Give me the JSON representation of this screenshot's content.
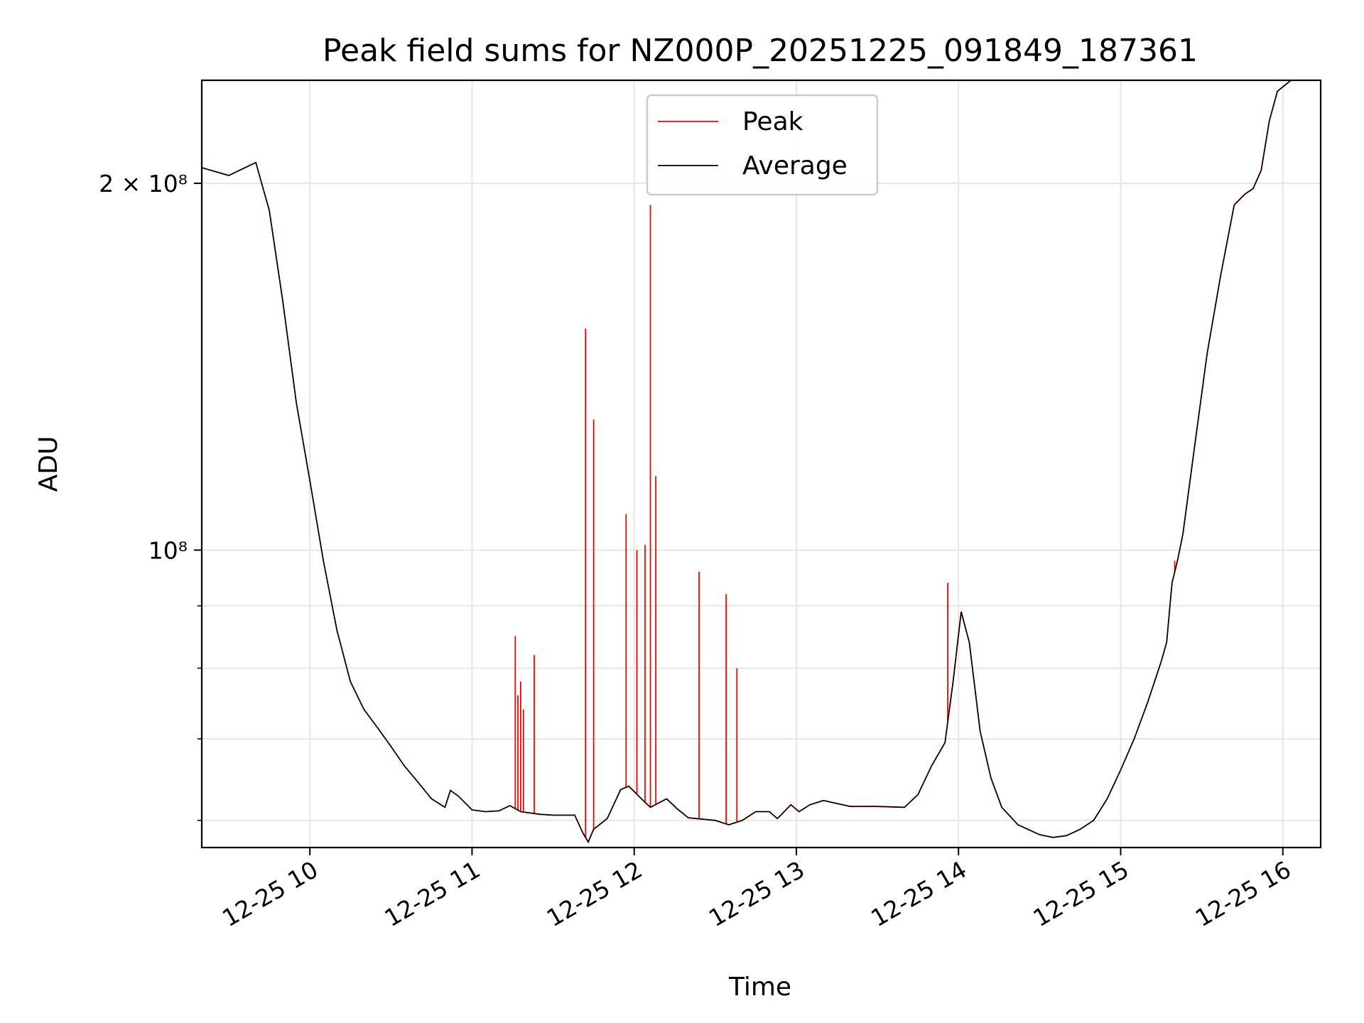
{
  "chart_data": {
    "type": "line",
    "title": "Peak field sums for NZ000P_20251225_091849_187361",
    "xlabel": "Time",
    "ylabel": "ADU",
    "y_scale": "log",
    "xlim": [
      "2025-12-25 09:20",
      "2025-12-25 16:14"
    ],
    "ylim": [
      57000000,
      243000000
    ],
    "grid": true,
    "legend_position": "upper center",
    "x_ticks": [
      {
        "label": "12-25 10",
        "time": "2025-12-25 10:00"
      },
      {
        "label": "12-25 11",
        "time": "2025-12-25 11:00"
      },
      {
        "label": "12-25 12",
        "time": "2025-12-25 12:00"
      },
      {
        "label": "12-25 13",
        "time": "2025-12-25 13:00"
      },
      {
        "label": "12-25 14",
        "time": "2025-12-25 14:00"
      },
      {
        "label": "12-25 15",
        "time": "2025-12-25 15:00"
      },
      {
        "label": "12-25 16",
        "time": "2025-12-25 16:00"
      }
    ],
    "y_ticks_major": [
      {
        "label": "10⁸",
        "value": 100000000
      },
      {
        "label": "2 × 10⁸",
        "value": 200000000
      }
    ],
    "y_ticks_minor": [
      60000000,
      70000000,
      80000000,
      90000000
    ],
    "series": [
      {
        "name": "Average",
        "color": "#000000",
        "points": [
          [
            "2025-12-25 09:20",
            206000000
          ],
          [
            "2025-12-25 09:30",
            203000000
          ],
          [
            "2025-12-25 09:38",
            207000000
          ],
          [
            "2025-12-25 09:40",
            208000000
          ],
          [
            "2025-12-25 09:45",
            190000000
          ],
          [
            "2025-12-25 09:50",
            160000000
          ],
          [
            "2025-12-25 09:55",
            132000000
          ],
          [
            "2025-12-25 10:00",
            114000000
          ],
          [
            "2025-12-25 10:05",
            98000000
          ],
          [
            "2025-12-25 10:10",
            86000000
          ],
          [
            "2025-12-25 10:15",
            78000000
          ],
          [
            "2025-12-25 10:20",
            74000000
          ],
          [
            "2025-12-25 10:25",
            71500000
          ],
          [
            "2025-12-25 10:30",
            69000000
          ],
          [
            "2025-12-25 10:35",
            66500000
          ],
          [
            "2025-12-25 10:40",
            64500000
          ],
          [
            "2025-12-25 10:45",
            62500000
          ],
          [
            "2025-12-25 10:50",
            61500000
          ],
          [
            "2025-12-25 10:52",
            63500000
          ],
          [
            "2025-12-25 10:55",
            62800000
          ],
          [
            "2025-12-25 11:00",
            61200000
          ],
          [
            "2025-12-25 11:05",
            61000000
          ],
          [
            "2025-12-25 11:10",
            61100000
          ],
          [
            "2025-12-25 11:14",
            61700000
          ],
          [
            "2025-12-25 11:18",
            61000000
          ],
          [
            "2025-12-25 11:25",
            60700000
          ],
          [
            "2025-12-25 11:30",
            60600000
          ],
          [
            "2025-12-25 11:38",
            60600000
          ],
          [
            "2025-12-25 11:41",
            58600000
          ],
          [
            "2025-12-25 11:43",
            57600000
          ],
          [
            "2025-12-25 11:45",
            59000000
          ],
          [
            "2025-12-25 11:50",
            60200000
          ],
          [
            "2025-12-25 11:55",
            63600000
          ],
          [
            "2025-12-25 11:58",
            64000000
          ],
          [
            "2025-12-25 12:03",
            62400000
          ],
          [
            "2025-12-25 12:06",
            61500000
          ],
          [
            "2025-12-25 12:09",
            62000000
          ],
          [
            "2025-12-25 12:12",
            62500000
          ],
          [
            "2025-12-25 12:16",
            61300000
          ],
          [
            "2025-12-25 12:20",
            60300000
          ],
          [
            "2025-12-25 12:30",
            60000000
          ],
          [
            "2025-12-25 12:35",
            59500000
          ],
          [
            "2025-12-25 12:40",
            60000000
          ],
          [
            "2025-12-25 12:45",
            61000000
          ],
          [
            "2025-12-25 12:50",
            61000000
          ],
          [
            "2025-12-25 12:53",
            60200000
          ],
          [
            "2025-12-25 12:58",
            61800000
          ],
          [
            "2025-12-25 13:01",
            61000000
          ],
          [
            "2025-12-25 13:05",
            61800000
          ],
          [
            "2025-12-25 13:10",
            62300000
          ],
          [
            "2025-12-25 13:20",
            61600000
          ],
          [
            "2025-12-25 13:30",
            61600000
          ],
          [
            "2025-12-25 13:40",
            61500000
          ],
          [
            "2025-12-25 13:45",
            63000000
          ],
          [
            "2025-12-25 13:50",
            66500000
          ],
          [
            "2025-12-25 13:55",
            69500000
          ],
          [
            "2025-12-25 13:58",
            78000000
          ],
          [
            "2025-12-25 14:01",
            89000000
          ],
          [
            "2025-12-25 14:04",
            84000000
          ],
          [
            "2025-12-25 14:08",
            71000000
          ],
          [
            "2025-12-25 14:12",
            65000000
          ],
          [
            "2025-12-25 14:16",
            61500000
          ],
          [
            "2025-12-25 14:22",
            59500000
          ],
          [
            "2025-12-25 14:30",
            58400000
          ],
          [
            "2025-12-25 14:35",
            58100000
          ],
          [
            "2025-12-25 14:40",
            58300000
          ],
          [
            "2025-12-25 14:45",
            59000000
          ],
          [
            "2025-12-25 14:50",
            60000000
          ],
          [
            "2025-12-25 14:55",
            62500000
          ],
          [
            "2025-12-25 15:00",
            66000000
          ],
          [
            "2025-12-25 15:05",
            70000000
          ],
          [
            "2025-12-25 15:10",
            75000000
          ],
          [
            "2025-12-25 15:15",
            81000000
          ],
          [
            "2025-12-25 15:17",
            84000000
          ],
          [
            "2025-12-25 15:19",
            94000000
          ],
          [
            "2025-12-25 15:21",
            98000000
          ],
          [
            "2025-12-25 15:23",
            103000000
          ],
          [
            "2025-12-25 15:27",
            120000000
          ],
          [
            "2025-12-25 15:32",
            145000000
          ],
          [
            "2025-12-25 15:37",
            168000000
          ],
          [
            "2025-12-25 15:42",
            192000000
          ],
          [
            "2025-12-25 15:46",
            196000000
          ],
          [
            "2025-12-25 15:49",
            198000000
          ],
          [
            "2025-12-25 15:52",
            205000000
          ],
          [
            "2025-12-25 15:55",
            225000000
          ],
          [
            "2025-12-25 15:58",
            238000000
          ],
          [
            "2025-12-25 16:03",
            243000000
          ],
          [
            "2025-12-25 16:14",
            243000000
          ]
        ]
      },
      {
        "name": "Peak",
        "color": "#ff0000",
        "spikes": [
          [
            "2025-12-25 11:16",
            85000000
          ],
          [
            "2025-12-25 11:17",
            76000000
          ],
          [
            "2025-12-25 11:18",
            78000000
          ],
          [
            "2025-12-25 11:19",
            74000000
          ],
          [
            "2025-12-25 11:23",
            82000000
          ],
          [
            "2025-12-25 11:42",
            152000000
          ],
          [
            "2025-12-25 11:45",
            128000000
          ],
          [
            "2025-12-25 11:57",
            107000000
          ],
          [
            "2025-12-25 12:01",
            100000000
          ],
          [
            "2025-12-25 12:04",
            101000000
          ],
          [
            "2025-12-25 12:06",
            192000000
          ],
          [
            "2025-12-25 12:08",
            115000000
          ],
          [
            "2025-12-25 12:24",
            96000000
          ],
          [
            "2025-12-25 12:34",
            92000000
          ],
          [
            "2025-12-25 12:38",
            80000000
          ],
          [
            "2025-12-25 13:56",
            94000000
          ],
          [
            "2025-12-25 15:20",
            98000000
          ]
        ]
      }
    ]
  }
}
